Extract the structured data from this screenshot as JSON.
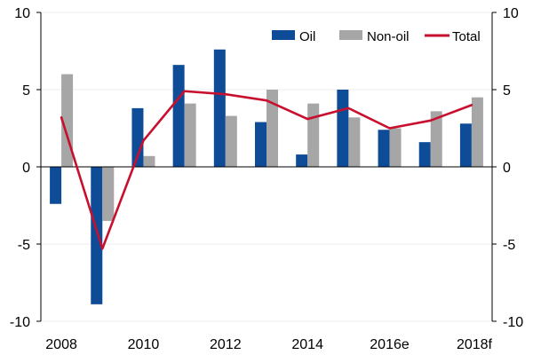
{
  "chart_data": {
    "type": "bar",
    "title": "",
    "xlabel": "",
    "ylabel": "",
    "ylim": [
      -10,
      10
    ],
    "yticks": [
      -10,
      -5,
      0,
      5,
      10
    ],
    "categories": [
      "2008",
      "2009",
      "2010",
      "2011",
      "2012",
      "2013",
      "2014",
      "2015",
      "2016e",
      "2017",
      "2018f"
    ],
    "x_tick_labels": [
      "2008",
      "",
      "2010",
      "",
      "2012",
      "",
      "2014",
      "",
      "2016e",
      "",
      "2018f"
    ],
    "legend_position": "top-right",
    "series": [
      {
        "name": "Oil",
        "type": "bar",
        "color": "#0f4c97",
        "values": [
          -2.4,
          -8.9,
          3.8,
          6.6,
          7.6,
          2.9,
          0.8,
          5.0,
          2.4,
          1.6,
          2.8
        ]
      },
      {
        "name": "Non-oil",
        "type": "bar",
        "color": "#a6a6a6",
        "values": [
          6.0,
          -3.5,
          0.7,
          4.1,
          3.3,
          5.0,
          4.1,
          3.2,
          2.5,
          3.6,
          4.5
        ]
      },
      {
        "name": "Total",
        "type": "line",
        "color": "#c8102e",
        "values": [
          3.2,
          -5.3,
          1.7,
          4.9,
          4.7,
          4.3,
          3.1,
          3.8,
          2.5,
          3.0,
          4.0
        ]
      }
    ]
  }
}
